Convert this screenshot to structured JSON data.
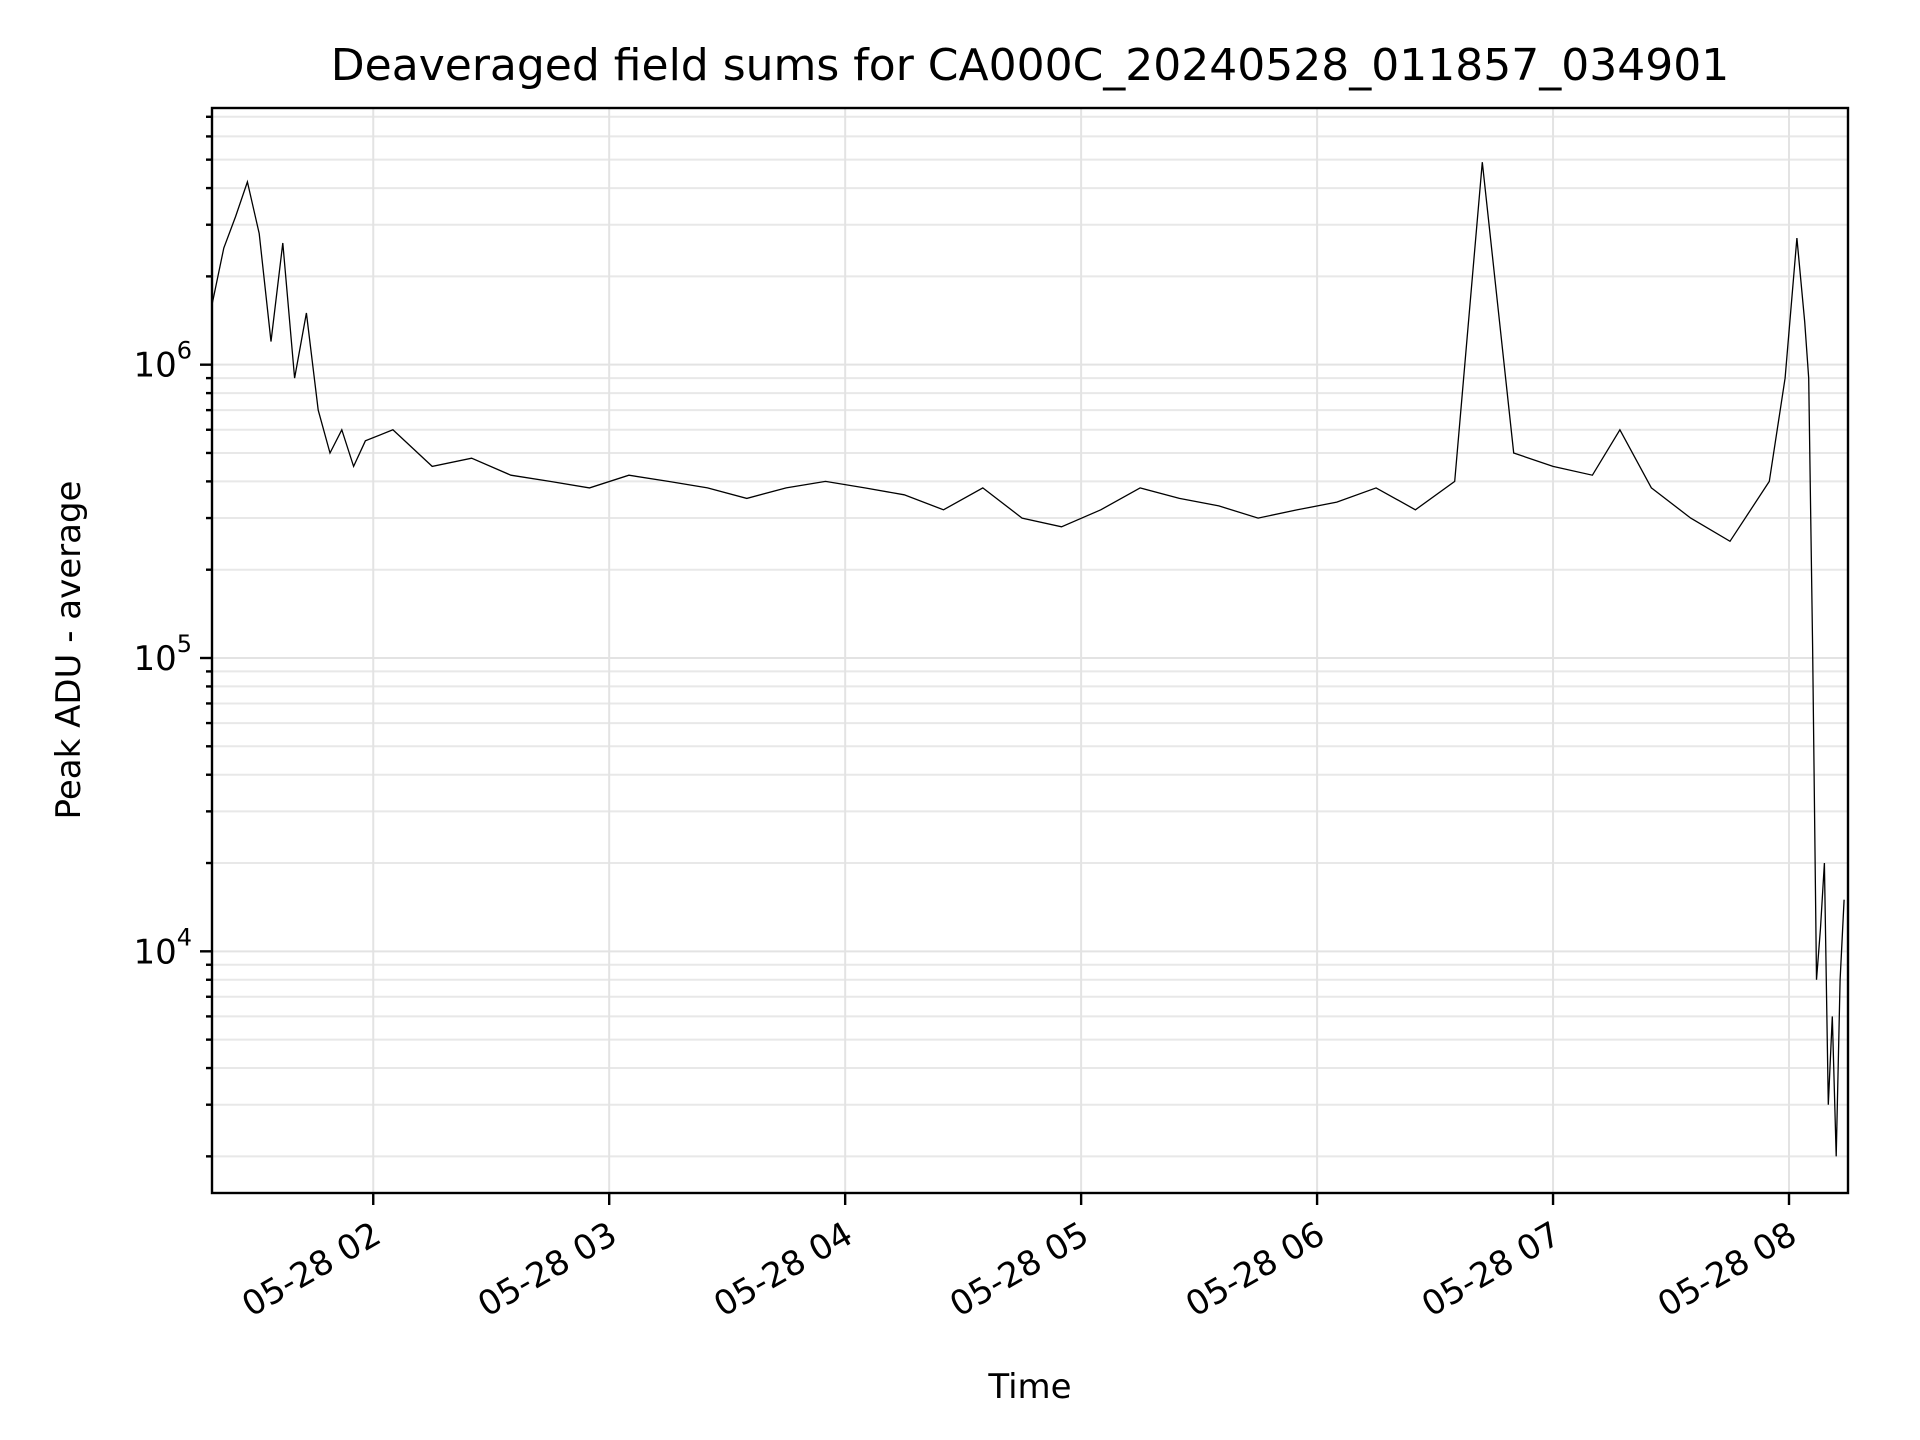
{
  "chart_data": {
    "type": "line",
    "title": "Deaveraged field sums for CA000C_20240528_011857_034901",
    "xlabel": "Time",
    "ylabel": "Peak ADU - average",
    "yscale": "log",
    "xlim": [
      "2024-05-28T01:19:00",
      "2024-05-28T08:15:00"
    ],
    "ylim": [
      1500,
      7500000
    ],
    "grid": true,
    "x_ticks": [
      {
        "value": "2024-05-28T02:00:00",
        "label": "05-28 02"
      },
      {
        "value": "2024-05-28T03:00:00",
        "label": "05-28 03"
      },
      {
        "value": "2024-05-28T04:00:00",
        "label": "05-28 04"
      },
      {
        "value": "2024-05-28T05:00:00",
        "label": "05-28 05"
      },
      {
        "value": "2024-05-28T06:00:00",
        "label": "05-28 06"
      },
      {
        "value": "2024-05-28T07:00:00",
        "label": "05-28 07"
      },
      {
        "value": "2024-05-28T08:00:00",
        "label": "05-28 08"
      }
    ],
    "y_ticks": [
      {
        "value": 10000,
        "base": "10",
        "exp": "4"
      },
      {
        "value": 100000,
        "base": "10",
        "exp": "5"
      },
      {
        "value": 1000000,
        "base": "10",
        "exp": "6"
      }
    ],
    "series": [
      {
        "color": "#000000",
        "x": [
          "2024-05-28T01:19:00",
          "2024-05-28T01:22:00",
          "2024-05-28T01:25:00",
          "2024-05-28T01:28:00",
          "2024-05-28T01:31:00",
          "2024-05-28T01:34:00",
          "2024-05-28T01:37:00",
          "2024-05-28T01:40:00",
          "2024-05-28T01:43:00",
          "2024-05-28T01:46:00",
          "2024-05-28T01:49:00",
          "2024-05-28T01:52:00",
          "2024-05-28T01:55:00",
          "2024-05-28T01:58:00",
          "2024-05-28T02:05:00",
          "2024-05-28T02:15:00",
          "2024-05-28T02:25:00",
          "2024-05-28T02:35:00",
          "2024-05-28T02:45:00",
          "2024-05-28T02:55:00",
          "2024-05-28T03:05:00",
          "2024-05-28T03:15:00",
          "2024-05-28T03:25:00",
          "2024-05-28T03:35:00",
          "2024-05-28T03:45:00",
          "2024-05-28T03:55:00",
          "2024-05-28T04:05:00",
          "2024-05-28T04:15:00",
          "2024-05-28T04:25:00",
          "2024-05-28T04:35:00",
          "2024-05-28T04:45:00",
          "2024-05-28T04:55:00",
          "2024-05-28T05:05:00",
          "2024-05-28T05:15:00",
          "2024-05-28T05:25:00",
          "2024-05-28T05:35:00",
          "2024-05-28T05:45:00",
          "2024-05-28T05:55:00",
          "2024-05-28T06:05:00",
          "2024-05-28T06:15:00",
          "2024-05-28T06:25:00",
          "2024-05-28T06:35:00",
          "2024-05-28T06:42:00",
          "2024-05-28T06:50:00",
          "2024-05-28T07:00:00",
          "2024-05-28T07:10:00",
          "2024-05-28T07:17:00",
          "2024-05-28T07:25:00",
          "2024-05-28T07:35:00",
          "2024-05-28T07:45:00",
          "2024-05-28T07:55:00",
          "2024-05-28T07:59:00",
          "2024-05-28T08:02:00",
          "2024-05-28T08:04:00",
          "2024-05-28T08:05:00",
          "2024-05-28T08:06:00",
          "2024-05-28T08:07:00",
          "2024-05-28T08:08:00",
          "2024-05-28T08:09:00",
          "2024-05-28T08:10:00",
          "2024-05-28T08:11:00",
          "2024-05-28T08:12:00",
          "2024-05-28T08:13:00",
          "2024-05-28T08:14:00"
        ],
        "y": [
          1600000,
          2500000,
          3200000,
          4200000,
          2800000,
          1200000,
          2600000,
          900000,
          1500000,
          700000,
          500000,
          600000,
          450000,
          550000,
          600000,
          450000,
          480000,
          420000,
          400000,
          380000,
          420000,
          400000,
          380000,
          350000,
          380000,
          400000,
          380000,
          360000,
          320000,
          380000,
          300000,
          280000,
          320000,
          380000,
          350000,
          330000,
          300000,
          320000,
          340000,
          380000,
          320000,
          400000,
          4900000,
          500000,
          450000,
          420000,
          600000,
          380000,
          300000,
          250000,
          400000,
          900000,
          2700000,
          1400000,
          900000,
          110000,
          8000,
          12000,
          20000,
          3000,
          6000,
          2000,
          8000,
          15000
        ]
      }
    ]
  }
}
